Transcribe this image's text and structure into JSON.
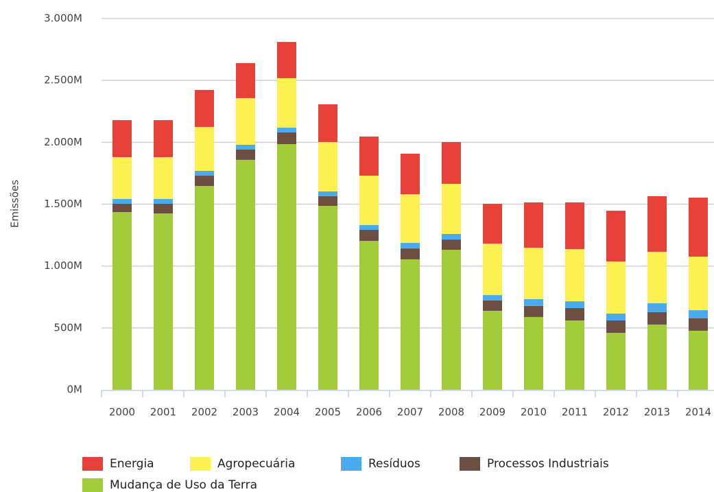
{
  "chart_data": {
    "type": "bar",
    "stacked": true,
    "y_label": "Emissões",
    "categories": [
      "2000",
      "2001",
      "2002",
      "2003",
      "2004",
      "2005",
      "2006",
      "2007",
      "2008",
      "2009",
      "2010",
      "2011",
      "2012",
      "2013",
      "2014"
    ],
    "series": [
      {
        "name": "Energia",
        "color": "#e8413a",
        "values": [
          299,
          299,
          299,
          283,
          293,
          305,
          316,
          328,
          338,
          322,
          366,
          377,
          410,
          449,
          477
        ]
      },
      {
        "name": "Agropecuária",
        "color": "#fdf152",
        "values": [
          338,
          338,
          355,
          377,
          400,
          399,
          399,
          393,
          405,
          416,
          416,
          422,
          421,
          416,
          433
        ]
      },
      {
        "name": "Resíduos",
        "color": "#4aaaee",
        "values": [
          39,
          39,
          39,
          39,
          38,
          39,
          39,
          45,
          45,
          44,
          55,
          55,
          56,
          72,
          66
        ]
      },
      {
        "name": "Processos Industriais",
        "color": "#6d4e43",
        "values": [
          67,
          78,
          83,
          83,
          95,
          78,
          89,
          88,
          83,
          83,
          89,
          100,
          100,
          100,
          100
        ]
      },
      {
        "name": "Mudança de Uso da Terra",
        "color": "#a3cc3b",
        "values": [
          1436,
          1425,
          1647,
          1858,
          1985,
          1486,
          1203,
          1054,
          1131,
          638,
          588,
          560,
          460,
          527,
          477
        ]
      }
    ],
    "ylim": [
      0,
      3000
    ],
    "yticks": [
      {
        "value": 0,
        "label": "0M"
      },
      {
        "value": 500,
        "label": "500M"
      },
      {
        "value": 1000,
        "label": "1.000M"
      },
      {
        "value": 1500,
        "label": "1.500M"
      },
      {
        "value": 2000,
        "label": "2.000M"
      },
      {
        "value": 2500,
        "label": "2.500M"
      },
      {
        "value": 3000,
        "label": "3.000M"
      }
    ],
    "grid": true
  }
}
